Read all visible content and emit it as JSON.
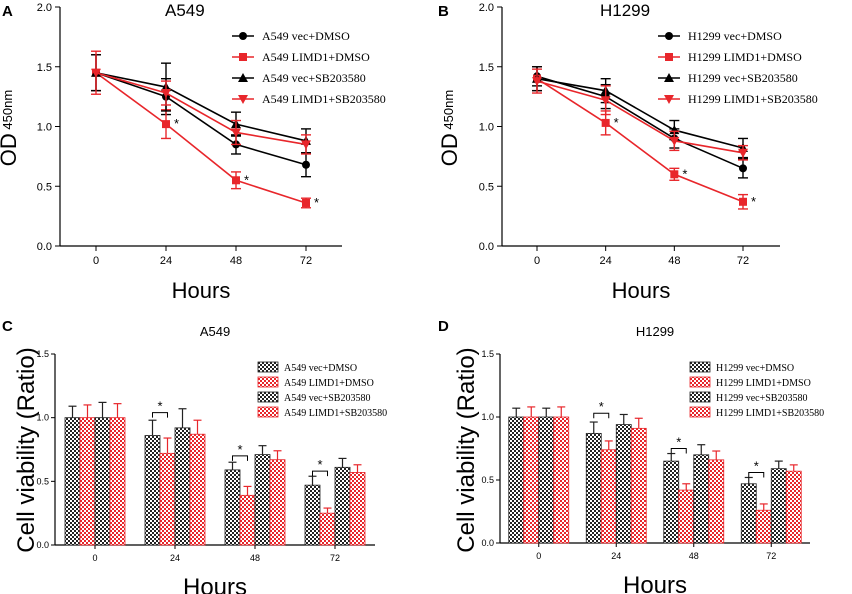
{
  "colors": {
    "black": "#000000",
    "red": "#e8262b",
    "grid_black": "#333333"
  },
  "chart_data": [
    {
      "panel": "A",
      "type": "line",
      "title": "A549",
      "xlabel": "Hours",
      "ylabel_main": "OD",
      "ylabel_sub": "450nm",
      "x": [
        0,
        24,
        48,
        72
      ],
      "x_ticks": [
        "0",
        "24",
        "48",
        "72"
      ],
      "ylim": [
        0.0,
        2.0
      ],
      "y_ticks": [
        "0.0",
        "0.5",
        "1.0",
        "1.5",
        "2.0"
      ],
      "series": [
        {
          "name": "A549 vec+DMSO",
          "color": "#000000",
          "marker": "circle",
          "values": [
            1.45,
            1.25,
            0.85,
            0.68
          ],
          "errors": [
            0.15,
            0.15,
            0.08,
            0.1
          ]
        },
        {
          "name": "A549 LIMD1+DMSO",
          "color": "#e8262b",
          "marker": "square",
          "values": [
            1.45,
            1.02,
            0.55,
            0.36
          ],
          "errors": [
            0.15,
            0.12,
            0.07,
            0.04
          ]
        },
        {
          "name": "A549 vec+SB203580",
          "color": "#000000",
          "marker": "triangle-up",
          "values": [
            1.45,
            1.33,
            1.02,
            0.88
          ],
          "errors": [
            0.15,
            0.2,
            0.1,
            0.1
          ]
        },
        {
          "name": "A549 LIMD1+SB203580",
          "color": "#e8262b",
          "marker": "triangle-down",
          "values": [
            1.45,
            1.28,
            0.95,
            0.85
          ],
          "errors": [
            0.18,
            0.1,
            0.1,
            0.08
          ]
        }
      ],
      "significance": [
        {
          "x": 24,
          "y": 1.02,
          "label": "*"
        },
        {
          "x": 48,
          "y": 0.55,
          "label": "*"
        },
        {
          "x": 72,
          "y": 0.36,
          "label": "*"
        }
      ]
    },
    {
      "panel": "B",
      "type": "line",
      "title": "H1299",
      "xlabel": "Hours",
      "ylabel_main": "OD",
      "ylabel_sub": "450nm",
      "x": [
        0,
        24,
        48,
        72
      ],
      "x_ticks": [
        "0",
        "24",
        "48",
        "72"
      ],
      "ylim": [
        0.0,
        2.0
      ],
      "y_ticks": [
        "0.0",
        "0.5",
        "1.0",
        "1.5",
        "2.0"
      ],
      "series": [
        {
          "name": "H1299 vec+DMSO",
          "color": "#000000",
          "marker": "circle",
          "values": [
            1.42,
            1.25,
            0.9,
            0.65
          ],
          "errors": [
            0.08,
            0.1,
            0.08,
            0.08
          ]
        },
        {
          "name": "H1299 LIMD1+DMSO",
          "color": "#e8262b",
          "marker": "square",
          "values": [
            1.4,
            1.03,
            0.6,
            0.37
          ],
          "errors": [
            0.1,
            0.1,
            0.05,
            0.06
          ]
        },
        {
          "name": "H1299 vec+SB203580",
          "color": "#000000",
          "marker": "triangle-up",
          "values": [
            1.4,
            1.3,
            0.97,
            0.82
          ],
          "errors": [
            0.1,
            0.1,
            0.08,
            0.08
          ]
        },
        {
          "name": "H1299 LIMD1+SB203580",
          "color": "#e8262b",
          "marker": "triangle-down",
          "values": [
            1.38,
            1.22,
            0.88,
            0.78
          ],
          "errors": [
            0.1,
            0.12,
            0.08,
            0.06
          ]
        }
      ],
      "significance": [
        {
          "x": 24,
          "y": 1.03,
          "label": "*"
        },
        {
          "x": 48,
          "y": 0.6,
          "label": "*"
        },
        {
          "x": 72,
          "y": 0.37,
          "label": "*"
        }
      ]
    },
    {
      "panel": "C",
      "type": "bar",
      "title": "A549",
      "xlabel": "Hours",
      "ylabel": "Cell viability (Ratio)",
      "categories": [
        "0",
        "24",
        "48",
        "72"
      ],
      "ylim": [
        0.0,
        1.5
      ],
      "y_ticks": [
        "0.0",
        "0.5",
        "1.0",
        "1.5"
      ],
      "series": [
        {
          "name": "A549 vec+DMSO",
          "style": "black",
          "values": [
            1.0,
            0.86,
            0.59,
            0.47
          ],
          "errors": [
            0.09,
            0.12,
            0.06,
            0.07
          ]
        },
        {
          "name": "A549 LIMD1+DMSO",
          "style": "red",
          "values": [
            1.0,
            0.72,
            0.39,
            0.25
          ],
          "errors": [
            0.1,
            0.12,
            0.07,
            0.04
          ]
        },
        {
          "name": "A549 vec+SB203580",
          "style": "black",
          "values": [
            1.0,
            0.92,
            0.71,
            0.61
          ],
          "errors": [
            0.12,
            0.15,
            0.07,
            0.07
          ]
        },
        {
          "name": "A549 LIMD1+SB203580",
          "style": "red",
          "values": [
            1.0,
            0.87,
            0.67,
            0.57
          ],
          "errors": [
            0.11,
            0.11,
            0.07,
            0.06
          ]
        }
      ],
      "significance": [
        {
          "category": "24",
          "label": "*",
          "y": 1.04
        },
        {
          "category": "48",
          "label": "*",
          "y": 0.7
        },
        {
          "category": "72",
          "label": "*",
          "y": 0.58
        }
      ]
    },
    {
      "panel": "D",
      "type": "bar",
      "title": "H1299",
      "xlabel": "Hours",
      "ylabel": "Cell viability (Ratio)",
      "categories": [
        "0",
        "24",
        "48",
        "72"
      ],
      "ylim": [
        0.0,
        1.5
      ],
      "y_ticks": [
        "0.0",
        "0.5",
        "1.0",
        "1.5"
      ],
      "series": [
        {
          "name": "H1299 vec+DMSO",
          "style": "black",
          "values": [
            1.0,
            0.87,
            0.65,
            0.47
          ],
          "errors": [
            0.07,
            0.09,
            0.06,
            0.05
          ]
        },
        {
          "name": "H1299 LIMD1+DMSO",
          "style": "red",
          "values": [
            1.0,
            0.74,
            0.42,
            0.26
          ],
          "errors": [
            0.08,
            0.07,
            0.05,
            0.05
          ]
        },
        {
          "name": "H1299 vec+SB203580",
          "style": "black",
          "values": [
            1.0,
            0.94,
            0.7,
            0.59
          ],
          "errors": [
            0.07,
            0.08,
            0.08,
            0.06
          ]
        },
        {
          "name": "H1299 LIMD1+SB203580",
          "style": "red",
          "values": [
            1.0,
            0.91,
            0.66,
            0.57
          ],
          "errors": [
            0.08,
            0.08,
            0.07,
            0.05
          ]
        }
      ],
      "significance": [
        {
          "category": "24",
          "label": "*",
          "y": 1.03
        },
        {
          "category": "48",
          "label": "*",
          "y": 0.75
        },
        {
          "category": "72",
          "label": "*",
          "y": 0.56
        }
      ]
    }
  ]
}
